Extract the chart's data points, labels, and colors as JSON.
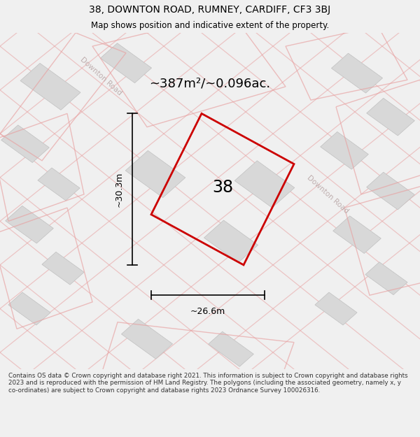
{
  "title_line1": "38, DOWNTON ROAD, RUMNEY, CARDIFF, CF3 3BJ",
  "title_line2": "Map shows position and indicative extent of the property.",
  "area_text": "~387m²/~0.096ac.",
  "label_38": "38",
  "dim_vertical": "~30.3m",
  "dim_horizontal": "~26.6m",
  "road_label_top": "Downton Road",
  "road_label_diag": "Downton Road",
  "footer_text": "Contains OS data © Crown copyright and database right 2021. This information is subject to Crown copyright and database rights 2023 and is reproduced with the permission of HM Land Registry. The polygons (including the associated geometry, namely x, y co-ordinates) are subject to Crown copyright and database rights 2023 Ordnance Survey 100026316.",
  "bg_color": "#f0f0f0",
  "map_bg": "#f0f0f0",
  "building_fill": "#d8d8d8",
  "building_edge": "#c0c0c0",
  "road_line_color": "#e8a0a0",
  "road_block_color": "#e8a0a0",
  "property_color": "#cc0000",
  "dim_color": "#000000",
  "title_color": "#000000",
  "road_label_color": "#c0b0b0",
  "footer_color": "#333333"
}
